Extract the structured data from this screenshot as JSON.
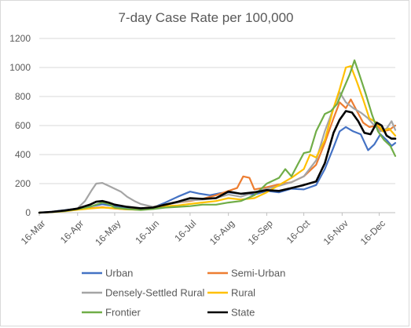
{
  "chart_data": {
    "type": "line",
    "title": "7-day Case Rate per 100,000",
    "xlabel": "",
    "ylabel": "",
    "ylim": [
      0,
      1200
    ],
    "yticks": [
      0,
      200,
      400,
      600,
      800,
      1000,
      1200
    ],
    "y_tick_labels": [
      "0",
      "200",
      "400",
      "600",
      "800",
      "1000",
      "1200"
    ],
    "x_tick_labels": [
      "16-Mar",
      "16-Apr",
      "16-May",
      "16-Jun",
      "16-Jul",
      "16-Aug",
      "16-Sep",
      "16-Oct",
      "16-Nov",
      "16-Dec"
    ],
    "x_tick_dates": [
      "2020-03-16",
      "2020-04-16",
      "2020-05-16",
      "2020-06-16",
      "2020-07-16",
      "2020-08-16",
      "2020-09-16",
      "2020-10-16",
      "2020-11-16",
      "2020-12-16"
    ],
    "xlim": [
      "2020-03-16",
      "2020-12-29"
    ],
    "grid": "horizontal",
    "legend_position": "bottom",
    "series": [
      {
        "name": "Urban",
        "color": "#4472C4",
        "points": [
          [
            "2020-03-16",
            0
          ],
          [
            "2020-03-26",
            6
          ],
          [
            "2020-04-06",
            18
          ],
          [
            "2020-04-16",
            28
          ],
          [
            "2020-04-26",
            42
          ],
          [
            "2020-05-06",
            58
          ],
          [
            "2020-05-12",
            50
          ],
          [
            "2020-05-18",
            40
          ],
          [
            "2020-05-26",
            30
          ],
          [
            "2020-06-06",
            22
          ],
          [
            "2020-06-16",
            35
          ],
          [
            "2020-06-26",
            70
          ],
          [
            "2020-07-06",
            110
          ],
          [
            "2020-07-16",
            145
          ],
          [
            "2020-07-24",
            130
          ],
          [
            "2020-08-01",
            120
          ],
          [
            "2020-08-10",
            135
          ],
          [
            "2020-08-16",
            140
          ],
          [
            "2020-08-26",
            130
          ],
          [
            "2020-09-06",
            125
          ],
          [
            "2020-09-16",
            150
          ],
          [
            "2020-09-26",
            140
          ],
          [
            "2020-10-06",
            165
          ],
          [
            "2020-10-16",
            160
          ],
          [
            "2020-10-26",
            190
          ],
          [
            "2020-11-02",
            300
          ],
          [
            "2020-11-09",
            450
          ],
          [
            "2020-11-14",
            560
          ],
          [
            "2020-11-19",
            590
          ],
          [
            "2020-11-25",
            560
          ],
          [
            "2020-12-01",
            540
          ],
          [
            "2020-12-07",
            430
          ],
          [
            "2020-12-12",
            470
          ],
          [
            "2020-12-17",
            540
          ],
          [
            "2020-12-22",
            500
          ],
          [
            "2020-12-26",
            460
          ],
          [
            "2020-12-29",
            480
          ]
        ]
      },
      {
        "name": "Semi-Urban",
        "color": "#ED7D31",
        "points": [
          [
            "2020-03-16",
            0
          ],
          [
            "2020-03-26",
            4
          ],
          [
            "2020-04-06",
            15
          ],
          [
            "2020-04-16",
            22
          ],
          [
            "2020-04-26",
            30
          ],
          [
            "2020-05-06",
            38
          ],
          [
            "2020-05-16",
            28
          ],
          [
            "2020-05-26",
            22
          ],
          [
            "2020-06-06",
            28
          ],
          [
            "2020-06-16",
            40
          ],
          [
            "2020-06-26",
            55
          ],
          [
            "2020-07-06",
            70
          ],
          [
            "2020-07-16",
            80
          ],
          [
            "2020-07-26",
            95
          ],
          [
            "2020-08-06",
            120
          ],
          [
            "2020-08-16",
            150
          ],
          [
            "2020-08-23",
            170
          ],
          [
            "2020-08-28",
            250
          ],
          [
            "2020-09-02",
            240
          ],
          [
            "2020-09-06",
            160
          ],
          [
            "2020-09-16",
            175
          ],
          [
            "2020-09-26",
            195
          ],
          [
            "2020-10-06",
            210
          ],
          [
            "2020-10-16",
            250
          ],
          [
            "2020-10-26",
            330
          ],
          [
            "2020-11-02",
            480
          ],
          [
            "2020-11-09",
            650
          ],
          [
            "2020-11-14",
            760
          ],
          [
            "2020-11-19",
            720
          ],
          [
            "2020-11-23",
            780
          ],
          [
            "2020-11-28",
            700
          ],
          [
            "2020-12-03",
            620
          ],
          [
            "2020-12-08",
            590
          ],
          [
            "2020-12-14",
            600
          ],
          [
            "2020-12-19",
            560
          ],
          [
            "2020-12-24",
            570
          ],
          [
            "2020-12-29",
            600
          ]
        ]
      },
      {
        "name": "Densely-Settled Rural",
        "color": "#A5A5A5",
        "points": [
          [
            "2020-03-16",
            0
          ],
          [
            "2020-03-26",
            5
          ],
          [
            "2020-04-06",
            15
          ],
          [
            "2020-04-16",
            30
          ],
          [
            "2020-04-22",
            80
          ],
          [
            "2020-04-27",
            150
          ],
          [
            "2020-05-01",
            200
          ],
          [
            "2020-05-06",
            205
          ],
          [
            "2020-05-11",
            185
          ],
          [
            "2020-05-16",
            165
          ],
          [
            "2020-05-21",
            145
          ],
          [
            "2020-05-26",
            110
          ],
          [
            "2020-06-01",
            80
          ],
          [
            "2020-06-06",
            60
          ],
          [
            "2020-06-16",
            40
          ],
          [
            "2020-06-26",
            55
          ],
          [
            "2020-07-06",
            70
          ],
          [
            "2020-07-16",
            85
          ],
          [
            "2020-07-26",
            90
          ],
          [
            "2020-08-06",
            100
          ],
          [
            "2020-08-16",
            125
          ],
          [
            "2020-08-26",
            110
          ],
          [
            "2020-09-06",
            140
          ],
          [
            "2020-09-16",
            165
          ],
          [
            "2020-09-26",
            185
          ],
          [
            "2020-10-06",
            210
          ],
          [
            "2020-10-16",
            250
          ],
          [
            "2020-10-26",
            360
          ],
          [
            "2020-11-02",
            560
          ],
          [
            "2020-11-09",
            720
          ],
          [
            "2020-11-14",
            830
          ],
          [
            "2020-11-19",
            760
          ],
          [
            "2020-11-25",
            720
          ],
          [
            "2020-12-01",
            690
          ],
          [
            "2020-12-07",
            650
          ],
          [
            "2020-12-12",
            600
          ],
          [
            "2020-12-17",
            560
          ],
          [
            "2020-12-22",
            580
          ],
          [
            "2020-12-26",
            630
          ],
          [
            "2020-12-29",
            570
          ]
        ]
      },
      {
        "name": "Rural",
        "color": "#FFC000",
        "points": [
          [
            "2020-03-16",
            0
          ],
          [
            "2020-03-26",
            3
          ],
          [
            "2020-04-06",
            10
          ],
          [
            "2020-04-16",
            20
          ],
          [
            "2020-04-26",
            28
          ],
          [
            "2020-05-06",
            35
          ],
          [
            "2020-05-16",
            30
          ],
          [
            "2020-05-26",
            22
          ],
          [
            "2020-06-06",
            20
          ],
          [
            "2020-06-16",
            30
          ],
          [
            "2020-06-26",
            45
          ],
          [
            "2020-07-06",
            50
          ],
          [
            "2020-07-16",
            60
          ],
          [
            "2020-07-26",
            70
          ],
          [
            "2020-08-06",
            80
          ],
          [
            "2020-08-16",
            100
          ],
          [
            "2020-08-26",
            90
          ],
          [
            "2020-09-06",
            100
          ],
          [
            "2020-09-16",
            140
          ],
          [
            "2020-09-26",
            190
          ],
          [
            "2020-10-06",
            240
          ],
          [
            "2020-10-16",
            300
          ],
          [
            "2020-10-21",
            400
          ],
          [
            "2020-10-26",
            380
          ],
          [
            "2020-11-02",
            500
          ],
          [
            "2020-11-09",
            720
          ],
          [
            "2020-11-14",
            850
          ],
          [
            "2020-11-19",
            1000
          ],
          [
            "2020-11-23",
            1010
          ],
          [
            "2020-11-28",
            900
          ],
          [
            "2020-12-03",
            780
          ],
          [
            "2020-12-08",
            650
          ],
          [
            "2020-12-14",
            620
          ],
          [
            "2020-12-19",
            560
          ],
          [
            "2020-12-24",
            580
          ],
          [
            "2020-12-29",
            530
          ]
        ]
      },
      {
        "name": "Frontier",
        "color": "#70AD47",
        "points": [
          [
            "2020-03-16",
            0
          ],
          [
            "2020-03-26",
            4
          ],
          [
            "2020-04-06",
            12
          ],
          [
            "2020-04-16",
            25
          ],
          [
            "2020-04-26",
            40
          ],
          [
            "2020-05-06",
            70
          ],
          [
            "2020-05-11",
            60
          ],
          [
            "2020-05-16",
            35
          ],
          [
            "2020-05-26",
            25
          ],
          [
            "2020-06-06",
            18
          ],
          [
            "2020-06-16",
            25
          ],
          [
            "2020-06-26",
            35
          ],
          [
            "2020-07-06",
            40
          ],
          [
            "2020-07-16",
            45
          ],
          [
            "2020-07-26",
            55
          ],
          [
            "2020-08-06",
            55
          ],
          [
            "2020-08-16",
            70
          ],
          [
            "2020-08-26",
            80
          ],
          [
            "2020-09-06",
            120
          ],
          [
            "2020-09-16",
            200
          ],
          [
            "2020-09-26",
            240
          ],
          [
            "2020-10-01",
            300
          ],
          [
            "2020-10-06",
            250
          ],
          [
            "2020-10-11",
            330
          ],
          [
            "2020-10-16",
            410
          ],
          [
            "2020-10-21",
            420
          ],
          [
            "2020-10-26",
            560
          ],
          [
            "2020-11-02",
            680
          ],
          [
            "2020-11-07",
            700
          ],
          [
            "2020-11-12",
            750
          ],
          [
            "2020-11-17",
            850
          ],
          [
            "2020-11-22",
            950
          ],
          [
            "2020-11-26",
            1050
          ],
          [
            "2020-11-30",
            950
          ],
          [
            "2020-12-05",
            820
          ],
          [
            "2020-12-10",
            680
          ],
          [
            "2020-12-15",
            560
          ],
          [
            "2020-12-20",
            500
          ],
          [
            "2020-12-25",
            460
          ],
          [
            "2020-12-29",
            390
          ]
        ]
      },
      {
        "name": "State",
        "color": "#000000",
        "points": [
          [
            "2020-03-16",
            0
          ],
          [
            "2020-03-26",
            5
          ],
          [
            "2020-04-06",
            15
          ],
          [
            "2020-04-16",
            28
          ],
          [
            "2020-04-26",
            55
          ],
          [
            "2020-05-01",
            75
          ],
          [
            "2020-05-06",
            80
          ],
          [
            "2020-05-11",
            70
          ],
          [
            "2020-05-16",
            55
          ],
          [
            "2020-05-26",
            40
          ],
          [
            "2020-06-06",
            30
          ],
          [
            "2020-06-16",
            35
          ],
          [
            "2020-06-26",
            55
          ],
          [
            "2020-07-06",
            75
          ],
          [
            "2020-07-16",
            100
          ],
          [
            "2020-07-26",
            95
          ],
          [
            "2020-08-06",
            100
          ],
          [
            "2020-08-16",
            145
          ],
          [
            "2020-08-26",
            130
          ],
          [
            "2020-09-06",
            140
          ],
          [
            "2020-09-16",
            155
          ],
          [
            "2020-09-26",
            150
          ],
          [
            "2020-10-06",
            170
          ],
          [
            "2020-10-16",
            190
          ],
          [
            "2020-10-26",
            215
          ],
          [
            "2020-11-02",
            340
          ],
          [
            "2020-11-09",
            550
          ],
          [
            "2020-11-14",
            640
          ],
          [
            "2020-11-19",
            700
          ],
          [
            "2020-11-24",
            690
          ],
          [
            "2020-11-29",
            630
          ],
          [
            "2020-12-04",
            550
          ],
          [
            "2020-12-09",
            540
          ],
          [
            "2020-12-14",
            620
          ],
          [
            "2020-12-18",
            600
          ],
          [
            "2020-12-22",
            530
          ],
          [
            "2020-12-26",
            510
          ],
          [
            "2020-12-29",
            510
          ]
        ]
      }
    ]
  }
}
